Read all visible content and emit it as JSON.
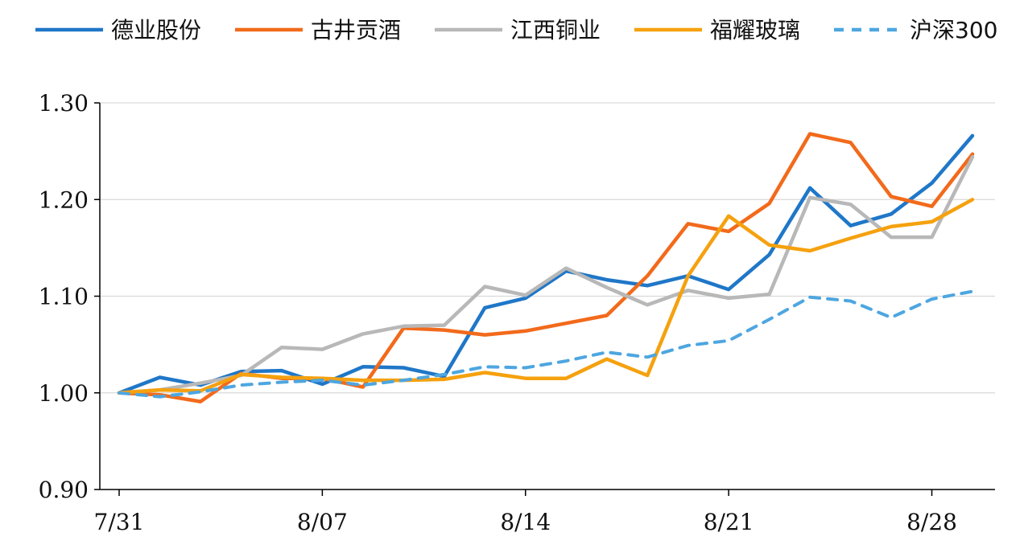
{
  "chart_data": {
    "type": "line",
    "title": "",
    "xlabel": "",
    "ylabel": "",
    "ylim": [
      0.9,
      1.3
    ],
    "yticks": [
      "0.90",
      "1.00",
      "1.10",
      "1.20",
      "1.30"
    ],
    "xtick_labels": [
      "7/31",
      "8/07",
      "8/14",
      "8/21",
      "8/28"
    ],
    "x": [
      "7/31",
      "8/01",
      "8/02",
      "8/03",
      "8/04",
      "8/07",
      "8/08",
      "8/09",
      "8/10",
      "8/11",
      "8/14",
      "8/15",
      "8/16",
      "8/17",
      "8/18",
      "8/21",
      "8/22",
      "8/23",
      "8/24",
      "8/25",
      "8/28",
      "8/29",
      "8/30"
    ],
    "grid": "horizontal",
    "legend_position": "top",
    "series": [
      {
        "name": "德业股份",
        "color": "#1f77c8",
        "dashed": false,
        "values": [
          1.0,
          1.016,
          1.008,
          1.022,
          1.023,
          1.009,
          1.027,
          1.026,
          1.017,
          1.088,
          1.098,
          1.126,
          1.117,
          1.111,
          1.121,
          1.107,
          1.143,
          1.212,
          1.173,
          1.185,
          1.217,
          1.266,
          null
        ]
      },
      {
        "name": "古井贡酒",
        "color": "#f26a1b",
        "dashed": false,
        "values": [
          1.0,
          0.998,
          0.991,
          1.02,
          1.015,
          1.015,
          1.006,
          1.067,
          1.065,
          1.06,
          1.064,
          1.072,
          1.08,
          1.121,
          1.175,
          1.167,
          1.196,
          1.268,
          1.259,
          1.203,
          1.193,
          1.247,
          null
        ]
      },
      {
        "name": "江西铜业",
        "color": "#b8b8b8",
        "dashed": false,
        "values": [
          1.0,
          1.003,
          1.01,
          1.018,
          1.047,
          1.045,
          1.061,
          1.069,
          1.07,
          1.11,
          1.101,
          1.129,
          1.109,
          1.091,
          1.106,
          1.098,
          1.102,
          1.202,
          1.195,
          1.161,
          1.161,
          1.244,
          null
        ]
      },
      {
        "name": "福耀玻璃",
        "color": "#f5a10f",
        "dashed": false,
        "values": [
          1.0,
          1.003,
          1.002,
          1.019,
          1.016,
          1.015,
          1.013,
          1.013,
          1.014,
          1.021,
          1.015,
          1.015,
          1.035,
          1.018,
          1.121,
          1.183,
          1.153,
          1.147,
          1.16,
          1.172,
          1.177,
          1.2,
          null
        ]
      },
      {
        "name": "沪深300",
        "color": "#4da6e0",
        "dashed": true,
        "values": [
          1.0,
          0.996,
          1.001,
          1.008,
          1.011,
          1.013,
          1.008,
          1.013,
          1.019,
          1.027,
          1.026,
          1.033,
          1.042,
          1.037,
          1.049,
          1.054,
          1.076,
          1.099,
          1.095,
          1.078,
          1.097,
          1.105,
          null
        ]
      }
    ]
  }
}
